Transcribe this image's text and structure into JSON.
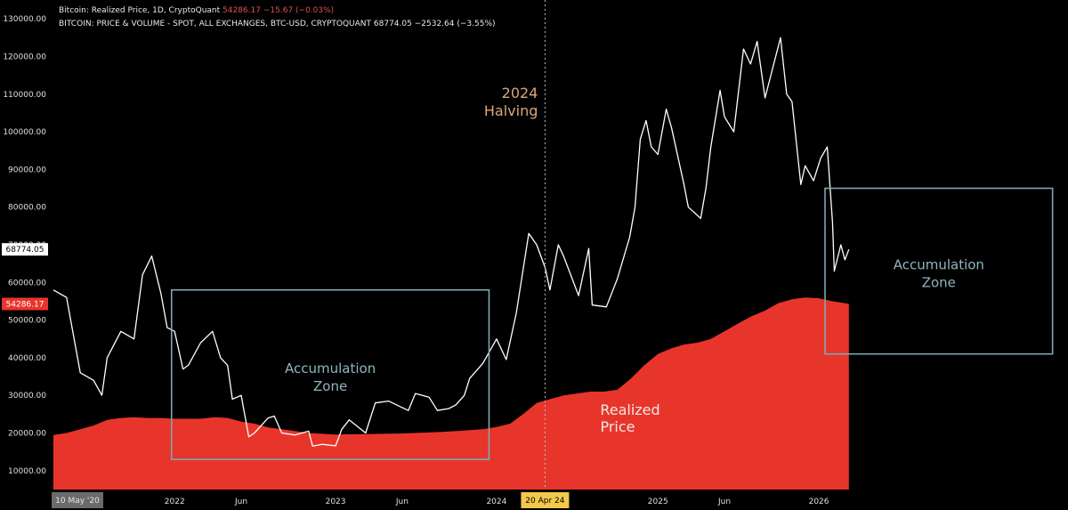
{
  "legend": {
    "line1_name": "Bitcoin: Realized Price, 1D, CryptoQuant",
    "line1_value": "54286.17",
    "line1_change": "−15.67 (−0.03%)",
    "line2_name": "BITCOIN: PRICE & VOLUME - SPOT, ALL EXCHANGES, BTC-USD, CRYPTOQUANT",
    "line2_value": "68774.05",
    "line2_change": "−2532.64 (−3.55%)"
  },
  "colors": {
    "background": "#000000",
    "price_line": "#ffffff",
    "realized_fill": "#e8352b",
    "zone_box": "#7fa7b0",
    "halving_text": "#d9a77c",
    "date_tag": "#f2c94c",
    "cursor_tag": "#6b6b6b"
  },
  "chart_data": {
    "type": "area",
    "xlim": [
      "2021-03-28",
      "2027-07-20"
    ],
    "ylim": [
      5000,
      135000
    ],
    "y_ticks": [
      "10000.00",
      "20000.00",
      "30000.00",
      "40000.00",
      "50000.00",
      "60000.00",
      "70000.00",
      "80000.00",
      "90000.00",
      "100000.00",
      "110000.00",
      "120000.00",
      "130000.00"
    ],
    "x_ticks": [
      {
        "label": "2022",
        "date": "2022-01-01"
      },
      {
        "label": "Jun",
        "date": "2022-06-01"
      },
      {
        "label": "2023",
        "date": "2023-01-01"
      },
      {
        "label": "Jun",
        "date": "2023-06-01"
      },
      {
        "label": "2024",
        "date": "2024-01-01"
      },
      {
        "label": "2025",
        "date": "2025-01-01"
      },
      {
        "label": "Jun",
        "date": "2025-06-01"
      },
      {
        "label": "2026",
        "date": "2026-01-01"
      }
    ],
    "cursor_date_label": "10 May '20",
    "halving": {
      "date": "2024-04-20",
      "tag": "20 Apr 24",
      "label_line1": "2024",
      "label_line2": "Halving"
    },
    "last_values": {
      "price": "68774.05",
      "realized": "54286.17"
    },
    "series": [
      {
        "role": "line",
        "x": [
          "2021-04-01",
          "2021-05-01",
          "2021-06-01",
          "2021-07-01",
          "2021-07-20",
          "2021-08-01",
          "2021-09-01",
          "2021-10-01",
          "2021-10-20",
          "2021-11-10",
          "2021-12-01",
          "2021-12-15",
          "2022-01-01",
          "2022-01-20",
          "2022-02-01",
          "2022-03-01",
          "2022-03-28",
          "2022-04-15",
          "2022-05-01",
          "2022-05-12",
          "2022-06-01",
          "2022-06-18",
          "2022-07-01",
          "2022-08-01",
          "2022-08-15",
          "2022-09-01",
          "2022-10-01",
          "2022-11-01",
          "2022-11-10",
          "2022-12-01",
          "2023-01-01",
          "2023-01-15",
          "2023-02-01",
          "2023-03-10",
          "2023-04-01",
          "2023-05-01",
          "2023-06-15",
          "2023-07-01",
          "2023-08-01",
          "2023-08-20",
          "2023-09-15",
          "2023-10-01",
          "2023-10-20",
          "2023-11-01",
          "2023-12-01",
          "2024-01-01",
          "2024-01-23",
          "2024-02-15",
          "2024-03-14",
          "2024-04-01",
          "2024-04-20",
          "2024-05-01",
          "2024-05-20",
          "2024-06-01",
          "2024-07-05",
          "2024-07-28",
          "2024-08-05",
          "2024-09-06",
          "2024-10-01",
          "2024-10-29",
          "2024-11-10",
          "2024-11-22",
          "2024-12-05",
          "2024-12-17",
          "2025-01-01",
          "2025-01-20",
          "2025-02-01",
          "2025-03-01",
          "2025-03-11",
          "2025-04-08",
          "2025-04-20",
          "2025-05-01",
          "2025-05-22",
          "2025-06-01",
          "2025-06-22",
          "2025-07-14",
          "2025-07-30",
          "2025-08-14",
          "2025-09-01",
          "2025-10-06",
          "2025-10-20",
          "2025-11-01",
          "2025-11-21",
          "2025-12-01",
          "2025-12-20",
          "2026-01-05",
          "2026-01-20",
          "2026-02-01",
          "2026-02-05",
          "2026-02-20",
          "2026-03-01",
          "2026-03-10"
        ],
        "y": [
          58000,
          56000,
          36000,
          34000,
          30000,
          40000,
          47000,
          45000,
          62000,
          67000,
          57000,
          48000,
          47000,
          37000,
          38000,
          44000,
          47000,
          40000,
          38000,
          29000,
          30000,
          19000,
          20000,
          24000,
          24500,
          20000,
          19500,
          20500,
          16500,
          17000,
          16600,
          21000,
          23500,
          20000,
          28000,
          28500,
          26000,
          30500,
          29500,
          26000,
          26500,
          27500,
          30000,
          34500,
          38500,
          45000,
          39500,
          52000,
          73000,
          70000,
          64000,
          58000,
          70000,
          67000,
          56500,
          69000,
          54000,
          53500,
          61000,
          72000,
          80000,
          98000,
          103000,
          96000,
          94000,
          106000,
          101000,
          86000,
          80000,
          77000,
          85000,
          96000,
          111000,
          104000,
          100000,
          122000,
          118000,
          124000,
          109000,
          125000,
          110000,
          108000,
          86000,
          91000,
          87000,
          93000,
          96000,
          76000,
          63000,
          70000,
          66000,
          68774
        ]
      },
      {
        "role": "area",
        "x": [
          "2021-04-01",
          "2021-05-01",
          "2021-06-01",
          "2021-07-01",
          "2021-08-01",
          "2021-09-01",
          "2021-10-01",
          "2021-11-01",
          "2021-12-01",
          "2022-01-01",
          "2022-02-01",
          "2022-03-01",
          "2022-04-01",
          "2022-05-01",
          "2022-06-01",
          "2022-07-01",
          "2022-08-01",
          "2022-09-01",
          "2022-10-01",
          "2022-11-01",
          "2022-12-01",
          "2023-01-01",
          "2023-03-01",
          "2023-06-01",
          "2023-09-01",
          "2023-12-01",
          "2024-01-01",
          "2024-02-01",
          "2024-03-01",
          "2024-04-01",
          "2024-05-01",
          "2024-06-01",
          "2024-07-01",
          "2024-08-01",
          "2024-09-01",
          "2024-10-01",
          "2024-11-01",
          "2024-12-01",
          "2025-01-01",
          "2025-02-01",
          "2025-03-01",
          "2025-04-01",
          "2025-05-01",
          "2025-06-01",
          "2025-07-01",
          "2025-08-01",
          "2025-09-01",
          "2025-10-01",
          "2025-11-01",
          "2025-12-01",
          "2026-01-01",
          "2026-02-01",
          "2026-03-01",
          "2026-03-10"
        ],
        "y": [
          19500,
          20000,
          21000,
          22000,
          23500,
          24000,
          24200,
          24000,
          24000,
          23800,
          23800,
          23800,
          24200,
          24000,
          23000,
          22500,
          21500,
          21000,
          20500,
          20000,
          19800,
          19600,
          19700,
          19900,
          20300,
          21000,
          21600,
          22500,
          25000,
          28000,
          29000,
          30000,
          30500,
          31000,
          31000,
          31500,
          34500,
          38000,
          41000,
          42500,
          43500,
          44000,
          45000,
          47000,
          49000,
          51000,
          52500,
          54500,
          55500,
          56000,
          55800,
          55000,
          54500,
          54286
        ]
      }
    ]
  },
  "zones": [
    {
      "label_line1": "Accumulation",
      "label_line2": "Zone",
      "x_start": "2021-12-25",
      "x_end": "2023-12-15",
      "y_low": 13000,
      "y_high": 58000
    },
    {
      "label_line1": "Accumulation",
      "label_line2": "Zone",
      "x_start": "2026-01-15",
      "x_end": "2027-06-15",
      "y_low": 41000,
      "y_high": 85000
    }
  ],
  "annotations": {
    "realized_line1": "Realized",
    "realized_line2": "Price"
  }
}
